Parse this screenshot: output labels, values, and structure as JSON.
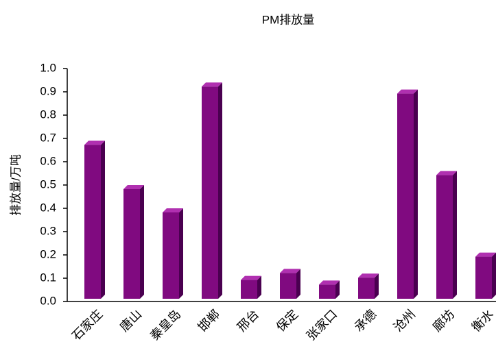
{
  "chart_data": {
    "type": "bar",
    "title": "PM排放量",
    "ylabel": "排放量/万吨",
    "categories": [
      "石家庄",
      "唐山",
      "秦皇岛",
      "邯郸",
      "邢台",
      "保定",
      "张家口",
      "承德",
      "沧州",
      "廊坊",
      "衡水"
    ],
    "values": [
      0.69,
      0.5,
      0.4,
      0.94,
      0.11,
      0.14,
      0.09,
      0.12,
      0.91,
      0.56,
      0.21
    ],
    "color": "#800a80",
    "ylim": [
      0,
      1
    ],
    "yticks": [
      {
        "value": 0,
        "label": "0.0"
      },
      0.1,
      0.2,
      0.3,
      0.4,
      0.5,
      0.6,
      0.7,
      0.8,
      0.9,
      {
        "value": 1,
        "label": "1.0"
      }
    ],
    "grid": false
  }
}
